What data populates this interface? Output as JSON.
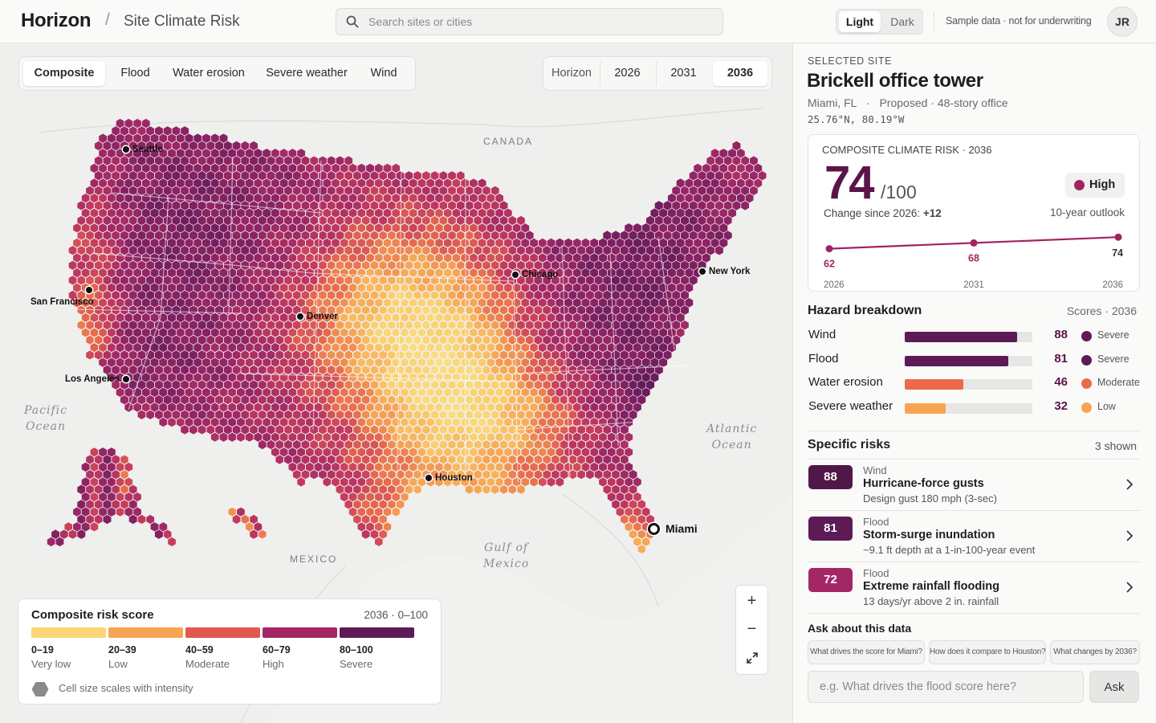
{
  "header": {
    "brand": "Horizon",
    "separator": "/",
    "page_title": "Site Climate Risk",
    "search_placeholder": "Search sites or cities",
    "theme": {
      "light": "Light",
      "dark": "Dark",
      "selected": "Light"
    },
    "note": "Sample data · not for underwriting",
    "avatar_initials": "JR"
  },
  "map": {
    "hazard_tabs": [
      {
        "label": "Composite",
        "selected": true
      },
      {
        "label": "Flood",
        "selected": false
      },
      {
        "label": "Water erosion",
        "selected": false
      },
      {
        "label": "Severe weather",
        "selected": false
      },
      {
        "label": "Wind",
        "selected": false
      }
    ],
    "horizon": {
      "label": "Horizon",
      "years": [
        "2026",
        "2031",
        "2036"
      ],
      "selected": "2036"
    },
    "labels": {
      "canada": "CANADA",
      "mexico": "MEXICO",
      "pacific_1": "Pacific",
      "pacific_2": "Ocean",
      "atlantic_1": "Atlantic",
      "atlantic_2": "Ocean",
      "gulf_1": "Gulf of",
      "gulf_2": "Mexico"
    },
    "cities": [
      {
        "name": "Seattle"
      },
      {
        "name": "San Francisco"
      },
      {
        "name": "Los Angeles"
      },
      {
        "name": "Denver"
      },
      {
        "name": "Chicago"
      },
      {
        "name": "New York"
      },
      {
        "name": "Houston"
      },
      {
        "name": "Miami",
        "selected": true
      }
    ],
    "zoom": {
      "in": "+",
      "out": "−",
      "fullscreen_icon": "expand-icon"
    },
    "legend": {
      "title": "Composite risk score",
      "meta": "2036 · 0–100",
      "bins": [
        {
          "range": "0–19",
          "name": "Very low",
          "color": "#fcd576"
        },
        {
          "range": "20–39",
          "name": "Low",
          "color": "#f8a552"
        },
        {
          "range": "40–59",
          "name": "Moderate",
          "color": "#e4574f"
        },
        {
          "range": "60–79",
          "name": "High",
          "color": "#a32765"
        },
        {
          "range": "80–100",
          "name": "Severe",
          "color": "#5e1a57"
        }
      ],
      "note": "Cell size scales with intensity"
    }
  },
  "panel": {
    "selected_label": "SELECTED SITE",
    "site_name": "Brickell office tower",
    "location": "Miami, FL",
    "location_sep": "·",
    "description": "Proposed · 48-story office",
    "coordinates": "25.76°N, 80.19°W",
    "composite": {
      "title": "COMPOSITE CLIMATE RISK · 2036",
      "score": "74",
      "denominator": "/100",
      "level": "High",
      "level_color": "#a12462",
      "change_label": "Change since 2026:",
      "change_value": "+12",
      "outlook": "10-year outlook",
      "trend": [
        {
          "year": "2026",
          "value": 62
        },
        {
          "year": "2031",
          "value": 68
        },
        {
          "year": "2036",
          "value": 74
        }
      ]
    },
    "hazard_breakdown": {
      "title": "Hazard breakdown",
      "meta": "Scores · 2036",
      "rows": [
        {
          "name": "Wind",
          "score": 88,
          "level": "Severe",
          "color": "#5c1a57"
        },
        {
          "name": "Flood",
          "score": 81,
          "level": "Severe",
          "color": "#5c1a57"
        },
        {
          "name": "Water erosion",
          "score": 46,
          "level": "Moderate",
          "color": "#ec6a4a"
        },
        {
          "name": "Severe weather",
          "score": 32,
          "level": "Low",
          "color": "#f8a552"
        }
      ]
    },
    "specific_risks": {
      "title": "Specific risks",
      "meta": "3 shown",
      "items": [
        {
          "score": "88",
          "category": "Wind",
          "title": "Hurricane-force gusts",
          "detail": "Design gust 180 mph (3-sec)",
          "color": "#4f1848"
        },
        {
          "score": "81",
          "category": "Flood",
          "title": "Storm-surge inundation",
          "detail": "~9.1 ft depth at a 1-in-100-year event",
          "color": "#5c1a57"
        },
        {
          "score": "72",
          "category": "Flood",
          "title": "Extreme rainfall flooding",
          "detail": "13 days/yr above 2 in. rainfall",
          "color": "#a32765"
        }
      ]
    },
    "ask": {
      "title": "Ask about this data",
      "suggestions": [
        "What drives the score for Miami?",
        "How does it compare to Houston?",
        "What changes by 2036?"
      ],
      "placeholder": "e.g. What drives the flood score here?",
      "button": "Ask"
    }
  }
}
